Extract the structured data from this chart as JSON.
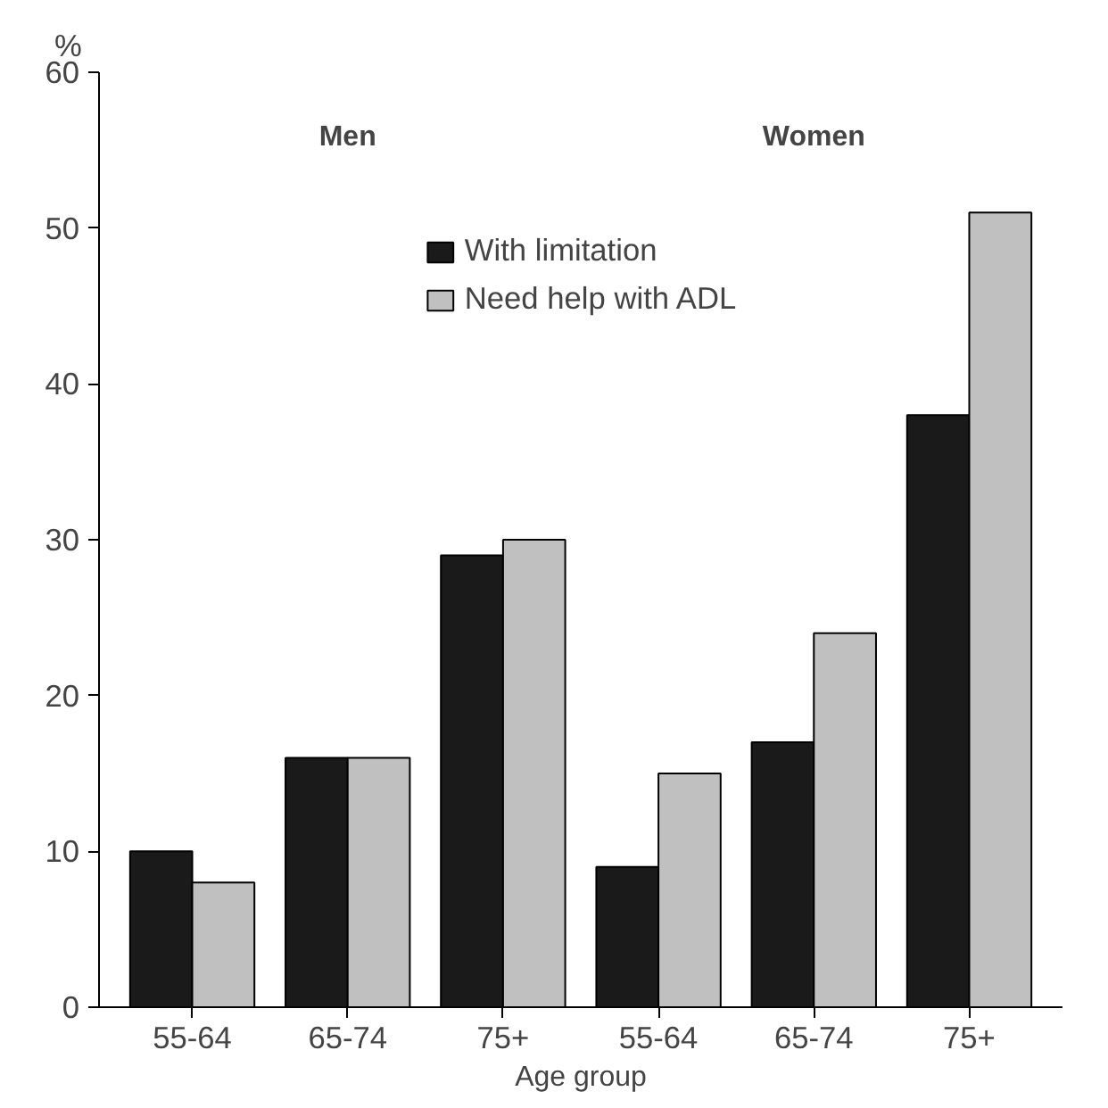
{
  "chart_data": {
    "type": "bar",
    "ylabel": "%",
    "xlabel": "Age group",
    "categories": [
      "55-64",
      "65-74",
      "75+",
      "55-64",
      "65-74",
      "75+"
    ],
    "series": [
      {
        "name": "With limitation",
        "color": "#1a1a1a",
        "values": [
          10,
          16,
          29,
          9,
          17,
          38
        ]
      },
      {
        "name": "Need help with ADL",
        "color": "#c0c0c0",
        "values": [
          8,
          16,
          30,
          15,
          24,
          51
        ]
      }
    ],
    "annotations": [
      "Men",
      "Women"
    ],
    "ylim": [
      0,
      60
    ],
    "yticks": [
      0,
      10,
      20,
      30,
      40,
      50,
      60
    ],
    "grid": false,
    "legend": "top"
  }
}
